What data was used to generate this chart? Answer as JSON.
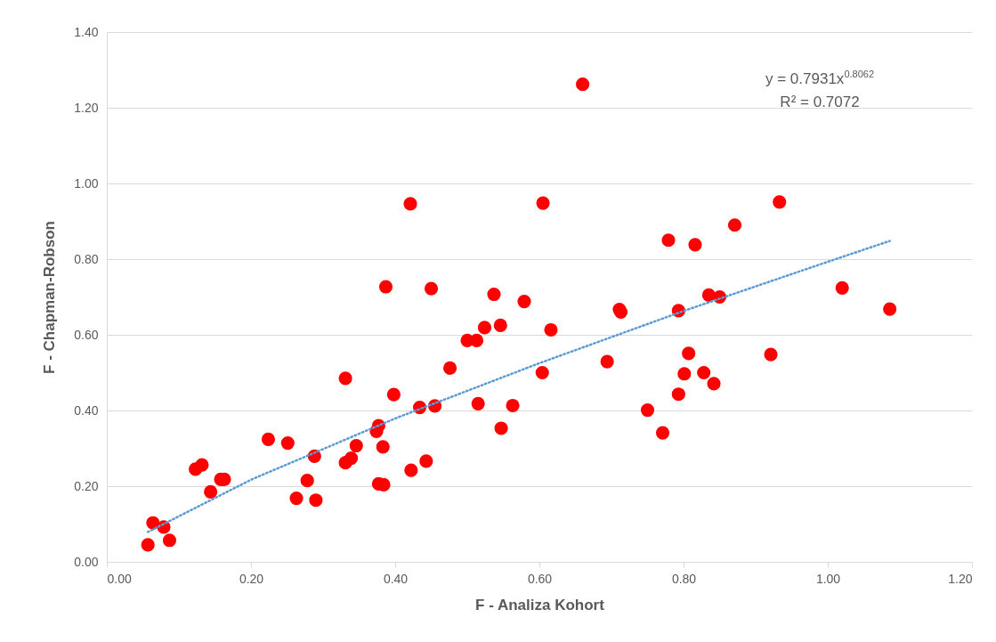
{
  "chart_data": {
    "type": "scatter",
    "xlabel": "F - Analiza Kohort",
    "ylabel": "F - Chapman-Robson",
    "annotations": [
      "y = 0.7931x$^{0.8062}$",
      "R² = 0.7072"
    ],
    "xlim": [
      0,
      1.2
    ],
    "ylim": [
      0,
      1.4
    ],
    "xticks": [
      {
        "value": 0,
        "label": "0.00"
      },
      {
        "value": 0.2,
        "label": "0.20"
      },
      {
        "value": 0.4,
        "label": "0.40"
      },
      {
        "value": 0.6,
        "label": "0.60"
      },
      {
        "value": 0.8,
        "label": "0.80"
      },
      {
        "value": 1,
        "label": "1.00"
      },
      {
        "value": 1.2,
        "label": "1.20"
      }
    ],
    "yticks": [
      {
        "value": 0,
        "label": "0.00"
      },
      {
        "value": 0.2,
        "label": "0.20"
      },
      {
        "value": 0.4,
        "label": "0.40"
      },
      {
        "value": 0.6,
        "label": "0.60"
      },
      {
        "value": 0.8,
        "label": "0.80"
      },
      {
        "value": 1,
        "label": "1.00"
      },
      {
        "value": 1.2,
        "label": "1.20"
      },
      {
        "value": 1.4,
        "label": "1.40"
      }
    ],
    "grid": "y",
    "series": [
      {
        "marker": "circle",
        "color": "#ff0000",
        "x": [
          0.057,
          0.064,
          0.079,
          0.087,
          0.123,
          0.132,
          0.144,
          0.158,
          0.163,
          0.224,
          0.251,
          0.263,
          0.278,
          0.288,
          0.29,
          0.331,
          0.331,
          0.339,
          0.346,
          0.374,
          0.377,
          0.377,
          0.384,
          0.383,
          0.387,
          0.398,
          0.421,
          0.422,
          0.434,
          0.443,
          0.45,
          0.455,
          0.476,
          0.5,
          0.513,
          0.515,
          0.524,
          0.537,
          0.546,
          0.547,
          0.563,
          0.579,
          0.604,
          0.605,
          0.616,
          0.66,
          0.694,
          0.711,
          0.713,
          0.75,
          0.771,
          0.779,
          0.793,
          0.793,
          0.801,
          0.807,
          0.816,
          0.828,
          0.835,
          0.842,
          0.85,
          0.871,
          0.921,
          0.933,
          1.02,
          1.086
        ],
        "values": [
          0.045,
          0.103,
          0.092,
          0.057,
          0.245,
          0.256,
          0.185,
          0.218,
          0.218,
          0.324,
          0.314,
          0.168,
          0.215,
          0.279,
          0.163,
          0.485,
          0.262,
          0.274,
          0.307,
          0.345,
          0.36,
          0.206,
          0.204,
          0.304,
          0.727,
          0.442,
          0.946,
          0.242,
          0.408,
          0.266,
          0.722,
          0.412,
          0.512,
          0.585,
          0.585,
          0.418,
          0.619,
          0.707,
          0.625,
          0.353,
          0.413,
          0.688,
          0.5,
          0.948,
          0.613,
          1.262,
          0.529,
          0.667,
          0.66,
          0.401,
          0.341,
          0.85,
          0.443,
          0.664,
          0.497,
          0.551,
          0.838,
          0.5,
          0.705,
          0.471,
          0.7,
          0.89,
          0.548,
          0.951,
          0.724,
          0.668
        ]
      },
      {
        "type": "line",
        "color": "#5b9bd5",
        "line_style": "dotted",
        "x": [
          0.057,
          0.2,
          0.4,
          0.6,
          0.8,
          1.0,
          1.086
        ],
        "values": [
          0.079,
          0.217,
          0.379,
          0.525,
          0.663,
          0.793,
          0.848
        ]
      }
    ]
  }
}
